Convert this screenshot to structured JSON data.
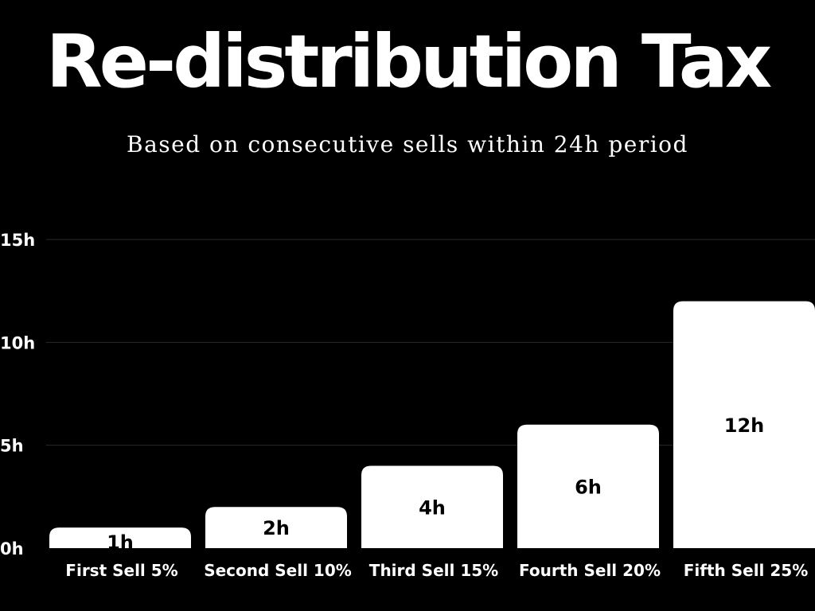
{
  "chart_data": {
    "type": "bar",
    "title": "Re-distribution Tax",
    "subtitle": "Based on consecutive sells within 24h period",
    "categories": [
      "First Sell 5%",
      "Second Sell 10%",
      "Third Sell 15%",
      "Fourth Sell 20%",
      "Fifth Sell 25%"
    ],
    "values": [
      1,
      2,
      4,
      6,
      12
    ],
    "data_labels": [
      "1h",
      "2h",
      "4h",
      "6h",
      "12h"
    ],
    "ylim": [
      0,
      15
    ],
    "yticks": [
      0,
      5,
      10,
      15
    ],
    "ytick_labels": [
      "0h",
      "5h",
      "10h",
      "15h"
    ],
    "xlabel": "",
    "ylabel": "",
    "grid": true,
    "legend": "none"
  },
  "colors": {
    "background": "#000000",
    "bar": "#ffffff",
    "text": "#ffffff",
    "data_label": "#000000",
    "grid": "#2a2a2a"
  }
}
